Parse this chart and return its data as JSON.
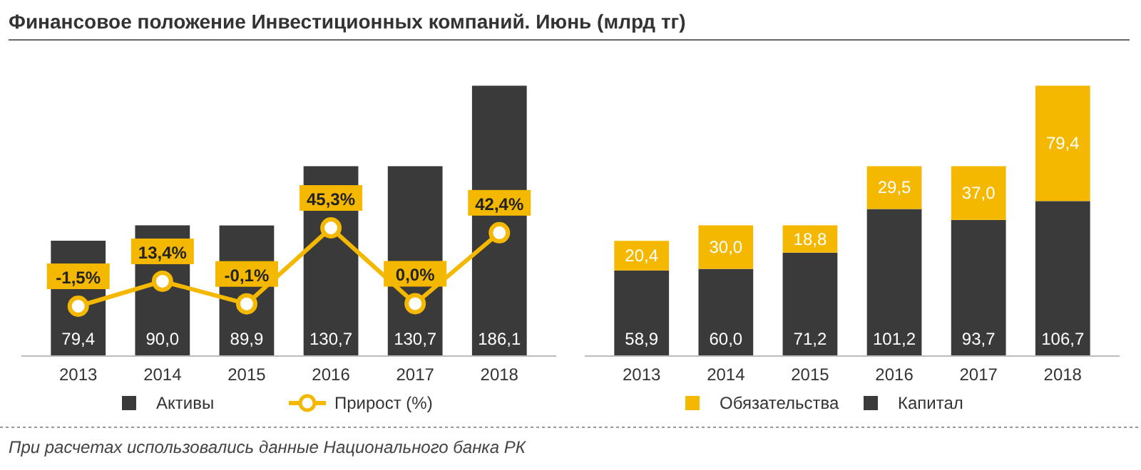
{
  "chart_data": [
    {
      "type": "bar",
      "title": "Финансовое положение Инвестиционных компаний. Июнь (млрд тг)",
      "categories": [
        "2013",
        "2014",
        "2015",
        "2016",
        "2017",
        "2018"
      ],
      "series": [
        {
          "name": "Активы",
          "color": "#3a3a3a",
          "values": [
            79.4,
            90.0,
            89.9,
            130.7,
            130.7,
            186.1
          ],
          "value_labels": [
            "79,4",
            "90,0",
            "89,9",
            "130,7",
            "130,7",
            "186,1"
          ]
        },
        {
          "name": "Прирост (%)",
          "type": "line",
          "axis": "y2",
          "color": "#f5b800",
          "values": [
            -1.5,
            13.4,
            -0.1,
            45.3,
            0.0,
            42.4
          ],
          "value_labels": [
            "-1,5%",
            "13,4%",
            "-0,1%",
            "45,3%",
            "0,0%",
            "42,4%"
          ]
        }
      ],
      "marker": "circle",
      "legend": "bottom",
      "annotations": [
        "При расчетах использовались данные Национального банка РК"
      ]
    },
    {
      "type": "bar",
      "categories": [
        "2013",
        "2014",
        "2015",
        "2016",
        "2017",
        "2018"
      ],
      "stacked": true,
      "series": [
        {
          "name": "Капитал",
          "color": "#3a3a3a",
          "values": [
            58.9,
            60.0,
            71.2,
            101.2,
            93.7,
            106.7
          ],
          "value_labels": [
            "58,9",
            "60,0",
            "71,2",
            "101,2",
            "93,7",
            "106,7"
          ]
        },
        {
          "name": "Обязательства",
          "color": "#f5b800",
          "values": [
            20.4,
            30.0,
            18.8,
            29.5,
            37.0,
            79.4
          ],
          "value_labels": [
            "20,4",
            "30,0",
            "18,8",
            "29,5",
            "37,0",
            "79,4"
          ]
        }
      ],
      "legend": "bottom"
    }
  ]
}
